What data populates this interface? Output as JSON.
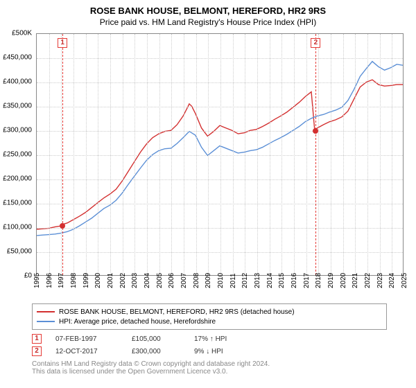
{
  "title_line1": "ROSE BANK HOUSE, BELMONT, HEREFORD, HR2 9RS",
  "title_line2": "Price paid vs. HM Land Registry's House Price Index (HPI)",
  "title_fontsize": 13,
  "subtitle_fontsize": 12,
  "chart": {
    "type": "line",
    "background_color": "#ffffff",
    "grid_color": "#cccccc",
    "border_color": "#888888",
    "x": {
      "min": 1995,
      "max": 2025,
      "step": 1,
      "labels": [
        "1995",
        "1996",
        "1997",
        "1998",
        "1999",
        "2000",
        "2001",
        "2002",
        "2003",
        "2004",
        "2005",
        "2006",
        "2007",
        "2008",
        "2009",
        "2010",
        "2011",
        "2012",
        "2013",
        "2014",
        "2015",
        "2016",
        "2017",
        "2018",
        "2019",
        "2020",
        "2021",
        "2022",
        "2023",
        "2024",
        "2025"
      ],
      "label_fontsize": 10
    },
    "y": {
      "min": 0,
      "max": 500000,
      "step": 50000,
      "labels": [
        "£0",
        "£50,000",
        "£100,000",
        "£150,000",
        "£200,000",
        "£250,000",
        "£300,000",
        "£350,000",
        "£400,000",
        "£450,000",
        "£500K"
      ],
      "label_fontsize": 10
    },
    "series": [
      {
        "name": "ROSE BANK HOUSE, BELMONT, HEREFORD, HR2 9RS (detached house)",
        "color": "#d32f2f",
        "line_width": 1.4,
        "points": [
          [
            1995.0,
            95000
          ],
          [
            1995.5,
            96000
          ],
          [
            1996.0,
            97000
          ],
          [
            1996.5,
            100000
          ],
          [
            1997.0,
            102000
          ],
          [
            1997.1,
            105000
          ],
          [
            1997.5,
            108000
          ],
          [
            1998.0,
            115000
          ],
          [
            1998.5,
            122000
          ],
          [
            1999.0,
            130000
          ],
          [
            1999.5,
            140000
          ],
          [
            2000.0,
            150000
          ],
          [
            2000.5,
            160000
          ],
          [
            2001.0,
            168000
          ],
          [
            2001.5,
            178000
          ],
          [
            2002.0,
            195000
          ],
          [
            2002.5,
            215000
          ],
          [
            2003.0,
            235000
          ],
          [
            2003.5,
            255000
          ],
          [
            2004.0,
            272000
          ],
          [
            2004.5,
            285000
          ],
          [
            2005.0,
            293000
          ],
          [
            2005.5,
            298000
          ],
          [
            2006.0,
            300000
          ],
          [
            2006.5,
            312000
          ],
          [
            2007.0,
            330000
          ],
          [
            2007.3,
            345000
          ],
          [
            2007.5,
            355000
          ],
          [
            2007.7,
            350000
          ],
          [
            2008.0,
            335000
          ],
          [
            2008.5,
            305000
          ],
          [
            2009.0,
            288000
          ],
          [
            2009.5,
            298000
          ],
          [
            2010.0,
            310000
          ],
          [
            2010.5,
            305000
          ],
          [
            2011.0,
            300000
          ],
          [
            2011.5,
            293000
          ],
          [
            2012.0,
            295000
          ],
          [
            2012.5,
            300000
          ],
          [
            2013.0,
            302000
          ],
          [
            2013.5,
            308000
          ],
          [
            2014.0,
            315000
          ],
          [
            2014.5,
            323000
          ],
          [
            2015.0,
            330000
          ],
          [
            2015.5,
            338000
          ],
          [
            2016.0,
            348000
          ],
          [
            2016.5,
            358000
          ],
          [
            2017.0,
            370000
          ],
          [
            2017.5,
            380000
          ],
          [
            2017.78,
            300000
          ],
          [
            2018.0,
            305000
          ],
          [
            2018.5,
            312000
          ],
          [
            2019.0,
            318000
          ],
          [
            2019.5,
            322000
          ],
          [
            2020.0,
            328000
          ],
          [
            2020.5,
            340000
          ],
          [
            2021.0,
            365000
          ],
          [
            2021.5,
            390000
          ],
          [
            2022.0,
            400000
          ],
          [
            2022.5,
            405000
          ],
          [
            2023.0,
            395000
          ],
          [
            2023.5,
            392000
          ],
          [
            2024.0,
            393000
          ],
          [
            2024.5,
            395000
          ],
          [
            2025.0,
            395000
          ]
        ]
      },
      {
        "name": "HPI: Average price, detached house, Herefordshire",
        "color": "#5b8fd6",
        "line_width": 1.4,
        "points": [
          [
            1995.0,
            82000
          ],
          [
            1995.5,
            83000
          ],
          [
            1996.0,
            84000
          ],
          [
            1996.5,
            85000
          ],
          [
            1997.0,
            87000
          ],
          [
            1997.5,
            90000
          ],
          [
            1998.0,
            95000
          ],
          [
            1998.5,
            102000
          ],
          [
            1999.0,
            110000
          ],
          [
            1999.5,
            118000
          ],
          [
            2000.0,
            128000
          ],
          [
            2000.5,
            138000
          ],
          [
            2001.0,
            145000
          ],
          [
            2001.5,
            155000
          ],
          [
            2002.0,
            170000
          ],
          [
            2002.5,
            188000
          ],
          [
            2003.0,
            205000
          ],
          [
            2003.5,
            222000
          ],
          [
            2004.0,
            238000
          ],
          [
            2004.5,
            250000
          ],
          [
            2005.0,
            258000
          ],
          [
            2005.5,
            262000
          ],
          [
            2006.0,
            263000
          ],
          [
            2006.5,
            273000
          ],
          [
            2007.0,
            285000
          ],
          [
            2007.5,
            298000
          ],
          [
            2008.0,
            290000
          ],
          [
            2008.5,
            265000
          ],
          [
            2009.0,
            248000
          ],
          [
            2009.5,
            258000
          ],
          [
            2010.0,
            268000
          ],
          [
            2010.5,
            263000
          ],
          [
            2011.0,
            258000
          ],
          [
            2011.5,
            253000
          ],
          [
            2012.0,
            255000
          ],
          [
            2012.5,
            258000
          ],
          [
            2013.0,
            260000
          ],
          [
            2013.5,
            265000
          ],
          [
            2014.0,
            272000
          ],
          [
            2014.5,
            279000
          ],
          [
            2015.0,
            285000
          ],
          [
            2015.5,
            292000
          ],
          [
            2016.0,
            300000
          ],
          [
            2016.5,
            308000
          ],
          [
            2017.0,
            318000
          ],
          [
            2017.5,
            325000
          ],
          [
            2018.0,
            330000
          ],
          [
            2018.5,
            333000
          ],
          [
            2019.0,
            338000
          ],
          [
            2019.5,
            342000
          ],
          [
            2020.0,
            348000
          ],
          [
            2020.5,
            362000
          ],
          [
            2021.0,
            385000
          ],
          [
            2021.5,
            412000
          ],
          [
            2022.0,
            428000
          ],
          [
            2022.5,
            443000
          ],
          [
            2023.0,
            432000
          ],
          [
            2023.5,
            425000
          ],
          [
            2024.0,
            430000
          ],
          [
            2024.5,
            437000
          ],
          [
            2025.0,
            435000
          ]
        ]
      }
    ],
    "markers": [
      {
        "label": "1",
        "x": 1997.1,
        "y": 105000,
        "box_color": "#e53935",
        "dot_color": "#d32f2f"
      },
      {
        "label": "2",
        "x": 2017.78,
        "y": 300000,
        "box_color": "#e53935",
        "dot_color": "#d32f2f"
      }
    ]
  },
  "legend": {
    "border_color": "#999999",
    "fontsize": 10,
    "items": [
      {
        "color": "#d32f2f",
        "label": "ROSE BANK HOUSE, BELMONT, HEREFORD, HR2 9RS (detached house)"
      },
      {
        "color": "#5b8fd6",
        "label": "HPI: Average price, detached house, Herefordshire"
      }
    ]
  },
  "events": [
    {
      "num": "1",
      "date": "07-FEB-1997",
      "price": "£105,000",
      "hpi": "17% ↑ HPI"
    },
    {
      "num": "2",
      "date": "12-OCT-2017",
      "price": "£300,000",
      "hpi": "9% ↓ HPI"
    }
  ],
  "footnote_line1": "Contains HM Land Registry data © Crown copyright and database right 2024.",
  "footnote_line2": "This data is licensed under the Open Government Licence v3.0.",
  "footnote_color": "#888888"
}
